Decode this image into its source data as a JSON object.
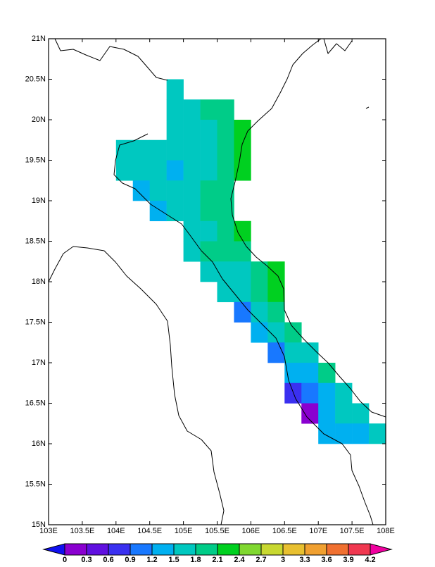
{
  "chart_data": {
    "type": "map",
    "xlim": [
      103,
      108
    ],
    "ylim": [
      15,
      21
    ],
    "xticks": [
      {
        "value": 103,
        "label": "103E"
      },
      {
        "value": 103.5,
        "label": "103.5E"
      },
      {
        "value": 104,
        "label": "104E"
      },
      {
        "value": 104.5,
        "label": "104.5E"
      },
      {
        "value": 105,
        "label": "105E"
      },
      {
        "value": 105.5,
        "label": "105.5E"
      },
      {
        "value": 106,
        "label": "106E"
      },
      {
        "value": 106.5,
        "label": "106.5E"
      },
      {
        "value": 107,
        "label": "107E"
      },
      {
        "value": 107.5,
        "label": "107.5E"
      },
      {
        "value": 108,
        "label": "108E"
      }
    ],
    "yticks": [
      {
        "value": 15,
        "label": "15N"
      },
      {
        "value": 15.5,
        "label": "15.5N"
      },
      {
        "value": 16,
        "label": "16N"
      },
      {
        "value": 16.5,
        "label": "16.5N"
      },
      {
        "value": 17,
        "label": "17N"
      },
      {
        "value": 17.5,
        "label": "17.5N"
      },
      {
        "value": 18,
        "label": "18N"
      },
      {
        "value": 18.5,
        "label": "18.5N"
      },
      {
        "value": 19,
        "label": "19N"
      },
      {
        "value": 19.5,
        "label": "19.5N"
      },
      {
        "value": 20,
        "label": "20N"
      },
      {
        "value": 20.5,
        "label": "20.5N"
      },
      {
        "value": 21,
        "label": "21N"
      }
    ],
    "levels": [
      0,
      0.3,
      0.6,
      0.9,
      1.2,
      1.5,
      1.8,
      2.1,
      2.4,
      2.7,
      3,
      3.3,
      3.6,
      3.9,
      4.2
    ],
    "colors": [
      "#1010f0",
      "#8a00d0",
      "#6010e0",
      "#3a30f0",
      "#1878ff",
      "#00b0f0",
      "#00c8c0",
      "#00cc88",
      "#00d020",
      "#80d830",
      "#c8d830",
      "#e8c030",
      "#f0a030",
      "#f07030",
      "#f03850",
      "#f000a0"
    ],
    "cells": [
      {
        "lon": 104.875,
        "lat": 20.375,
        "value": 1.65
      },
      {
        "lon": 104.875,
        "lat": 20.125,
        "value": 1.65
      },
      {
        "lon": 105.125,
        "lat": 20.125,
        "value": 1.65
      },
      {
        "lon": 105.375,
        "lat": 20.125,
        "value": 1.95
      },
      {
        "lon": 105.625,
        "lat": 20.125,
        "value": 1.95
      },
      {
        "lon": 104.875,
        "lat": 19.875,
        "value": 1.65
      },
      {
        "lon": 105.125,
        "lat": 19.875,
        "value": 1.65
      },
      {
        "lon": 105.375,
        "lat": 19.875,
        "value": 1.65
      },
      {
        "lon": 105.625,
        "lat": 19.875,
        "value": 1.95
      },
      {
        "lon": 105.875,
        "lat": 19.875,
        "value": 2.25
      },
      {
        "lon": 104.125,
        "lat": 19.625,
        "value": 1.65
      },
      {
        "lon": 104.375,
        "lat": 19.625,
        "value": 1.65
      },
      {
        "lon": 104.625,
        "lat": 19.625,
        "value": 1.65
      },
      {
        "lon": 104.875,
        "lat": 19.625,
        "value": 1.65
      },
      {
        "lon": 105.125,
        "lat": 19.625,
        "value": 1.65
      },
      {
        "lon": 105.375,
        "lat": 19.625,
        "value": 1.65
      },
      {
        "lon": 105.625,
        "lat": 19.625,
        "value": 1.95
      },
      {
        "lon": 105.875,
        "lat": 19.625,
        "value": 2.25
      },
      {
        "lon": 104.125,
        "lat": 19.375,
        "value": 1.65
      },
      {
        "lon": 104.375,
        "lat": 19.375,
        "value": 1.65
      },
      {
        "lon": 104.625,
        "lat": 19.375,
        "value": 1.65
      },
      {
        "lon": 104.875,
        "lat": 19.375,
        "value": 1.35
      },
      {
        "lon": 105.125,
        "lat": 19.375,
        "value": 1.65
      },
      {
        "lon": 105.375,
        "lat": 19.375,
        "value": 1.65
      },
      {
        "lon": 105.625,
        "lat": 19.375,
        "value": 1.95
      },
      {
        "lon": 105.875,
        "lat": 19.375,
        "value": 2.25
      },
      {
        "lon": 104.375,
        "lat": 19.125,
        "value": 1.35
      },
      {
        "lon": 104.625,
        "lat": 19.125,
        "value": 1.65
      },
      {
        "lon": 104.875,
        "lat": 19.125,
        "value": 1.65
      },
      {
        "lon": 105.125,
        "lat": 19.125,
        "value": 1.65
      },
      {
        "lon": 105.375,
        "lat": 19.125,
        "value": 1.95
      },
      {
        "lon": 105.625,
        "lat": 19.125,
        "value": 1.95
      },
      {
        "lon": 104.625,
        "lat": 18.875,
        "value": 1.35
      },
      {
        "lon": 104.875,
        "lat": 18.875,
        "value": 1.65
      },
      {
        "lon": 105.125,
        "lat": 18.875,
        "value": 1.65
      },
      {
        "lon": 105.375,
        "lat": 18.875,
        "value": 1.95
      },
      {
        "lon": 105.625,
        "lat": 18.875,
        "value": 1.95
      },
      {
        "lon": 105.125,
        "lat": 18.625,
        "value": 1.65
      },
      {
        "lon": 105.375,
        "lat": 18.625,
        "value": 1.65
      },
      {
        "lon": 105.625,
        "lat": 18.625,
        "value": 1.95
      },
      {
        "lon": 105.875,
        "lat": 18.625,
        "value": 2.25
      },
      {
        "lon": 105.125,
        "lat": 18.375,
        "value": 1.65
      },
      {
        "lon": 105.375,
        "lat": 18.375,
        "value": 1.95
      },
      {
        "lon": 105.625,
        "lat": 18.375,
        "value": 1.95
      },
      {
        "lon": 105.875,
        "lat": 18.375,
        "value": 1.95
      },
      {
        "lon": 105.375,
        "lat": 18.125,
        "value": 1.65
      },
      {
        "lon": 105.625,
        "lat": 18.125,
        "value": 1.65
      },
      {
        "lon": 105.875,
        "lat": 18.125,
        "value": 1.65
      },
      {
        "lon": 106.125,
        "lat": 18.125,
        "value": 1.95
      },
      {
        "lon": 106.375,
        "lat": 18.125,
        "value": 2.25
      },
      {
        "lon": 105.625,
        "lat": 17.875,
        "value": 1.65
      },
      {
        "lon": 105.875,
        "lat": 17.875,
        "value": 1.65
      },
      {
        "lon": 106.125,
        "lat": 17.875,
        "value": 1.95
      },
      {
        "lon": 106.375,
        "lat": 17.875,
        "value": 2.25
      },
      {
        "lon": 105.875,
        "lat": 17.625,
        "value": 1.05
      },
      {
        "lon": 106.125,
        "lat": 17.625,
        "value": 1.65
      },
      {
        "lon": 106.375,
        "lat": 17.625,
        "value": 1.95
      },
      {
        "lon": 106.125,
        "lat": 17.375,
        "value": 1.35
      },
      {
        "lon": 106.375,
        "lat": 17.375,
        "value": 1.65
      },
      {
        "lon": 106.625,
        "lat": 17.375,
        "value": 1.95
      },
      {
        "lon": 106.375,
        "lat": 17.125,
        "value": 1.05
      },
      {
        "lon": 106.625,
        "lat": 17.125,
        "value": 1.65
      },
      {
        "lon": 106.875,
        "lat": 17.125,
        "value": 1.65
      },
      {
        "lon": 106.625,
        "lat": 16.875,
        "value": 1.35
      },
      {
        "lon": 106.875,
        "lat": 16.875,
        "value": 1.35
      },
      {
        "lon": 107.125,
        "lat": 16.875,
        "value": 1.95
      },
      {
        "lon": 106.625,
        "lat": 16.625,
        "value": 0.75
      },
      {
        "lon": 106.875,
        "lat": 16.625,
        "value": 1.05
      },
      {
        "lon": 107.125,
        "lat": 16.625,
        "value": 1.35
      },
      {
        "lon": 107.375,
        "lat": 16.625,
        "value": 1.65
      },
      {
        "lon": 106.875,
        "lat": 16.375,
        "value": 0.15
      },
      {
        "lon": 107.125,
        "lat": 16.375,
        "value": 1.35
      },
      {
        "lon": 107.375,
        "lat": 16.375,
        "value": 1.65
      },
      {
        "lon": 107.625,
        "lat": 16.375,
        "value": 1.65
      },
      {
        "lon": 107.125,
        "lat": 16.125,
        "value": 1.35
      },
      {
        "lon": 107.375,
        "lat": 16.125,
        "value": 1.35
      },
      {
        "lon": 107.625,
        "lat": 16.125,
        "value": 1.35
      },
      {
        "lon": 107.875,
        "lat": 16.125,
        "value": 1.65
      }
    ]
  }
}
